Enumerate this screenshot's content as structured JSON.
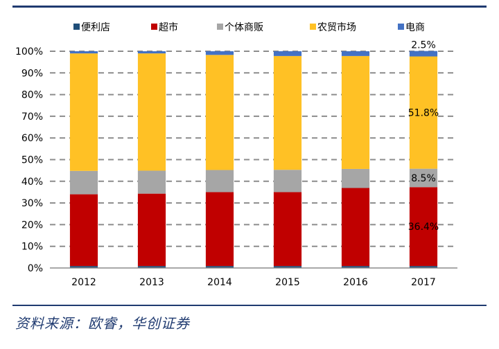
{
  "chart_data": {
    "type": "bar",
    "stacked": true,
    "percent": true,
    "title": "",
    "xlabel": "",
    "ylabel": "",
    "ylim": [
      0,
      100
    ],
    "yticks": [
      "0%",
      "10%",
      "20%",
      "30%",
      "40%",
      "50%",
      "60%",
      "70%",
      "80%",
      "90%",
      "100%"
    ],
    "categories": [
      "2012",
      "2013",
      "2014",
      "2015",
      "2016",
      "2017"
    ],
    "grid": true,
    "legend": "top",
    "series": [
      {
        "name": "便利店",
        "color": "#1f4e79",
        "values": [
          0.9,
          0.9,
          0.9,
          0.9,
          0.9,
          0.9
        ]
      },
      {
        "name": "超市",
        "color": "#c00000",
        "values": [
          33.1,
          33.4,
          34.1,
          34.1,
          36.0,
          36.4
        ]
      },
      {
        "name": "个体商贩",
        "color": "#a6a6a6",
        "values": [
          10.8,
          10.6,
          10.2,
          10.3,
          8.8,
          8.5
        ]
      },
      {
        "name": "农贸市场",
        "color": "#ffc125",
        "values": [
          54.2,
          54.1,
          53.1,
          52.5,
          52.1,
          51.8
        ]
      },
      {
        "name": "电商",
        "color": "#4472c4",
        "values": [
          1.0,
          1.0,
          1.7,
          2.2,
          2.2,
          2.5
        ]
      }
    ],
    "annotations": [
      {
        "category": "2017",
        "series": "超市",
        "text": "36.4%"
      },
      {
        "category": "2017",
        "series": "个体商贩",
        "text": "8.5%"
      },
      {
        "category": "2017",
        "series": "农贸市场",
        "text": "51.8%"
      },
      {
        "category": "2017",
        "series": "电商",
        "text": "2.5%"
      }
    ]
  },
  "footer": {
    "source": "资料来源：欧睿，华创证券"
  }
}
